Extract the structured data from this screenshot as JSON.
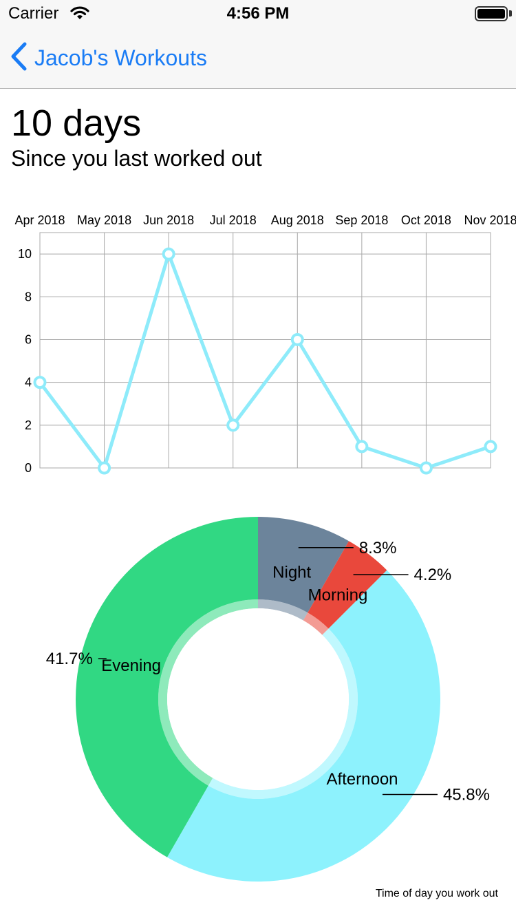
{
  "status_bar": {
    "carrier": "Carrier",
    "time": "4:56 PM"
  },
  "nav": {
    "back_label": "Jacob's Workouts"
  },
  "summary": {
    "headline": "10 days",
    "subtitle": "Since you last worked out"
  },
  "colors": {
    "accent": "#1a7cf5",
    "line": "#8eebfa",
    "night": "#6c849b",
    "morning": "#e9483c",
    "afternoon": "#8df2fd",
    "evening": "#31d883"
  },
  "chart_data": [
    {
      "type": "line",
      "x": [
        "Apr 2018",
        "May 2018",
        "Jun 2018",
        "Jul 2018",
        "Aug 2018",
        "Sep 2018",
        "Oct 2018",
        "Nov 2018"
      ],
      "values": [
        4,
        0,
        10,
        2,
        6,
        1,
        0,
        1
      ],
      "ylim": [
        0,
        11
      ],
      "yticks": [
        "0",
        "2",
        "4",
        "6",
        "8",
        "10"
      ],
      "grid": true,
      "legend": "none"
    },
    {
      "type": "pie",
      "description": "Time of day you work out",
      "slices": [
        {
          "label": "Night",
          "value": 8.3,
          "percent_label": "8.3%"
        },
        {
          "label": "Morning",
          "value": 4.2,
          "percent_label": "4.2%"
        },
        {
          "label": "Afternoon",
          "value": 45.8,
          "percent_label": "45.8%"
        },
        {
          "label": "Evening",
          "value": 41.7,
          "percent_label": "41.7%"
        }
      ]
    }
  ]
}
